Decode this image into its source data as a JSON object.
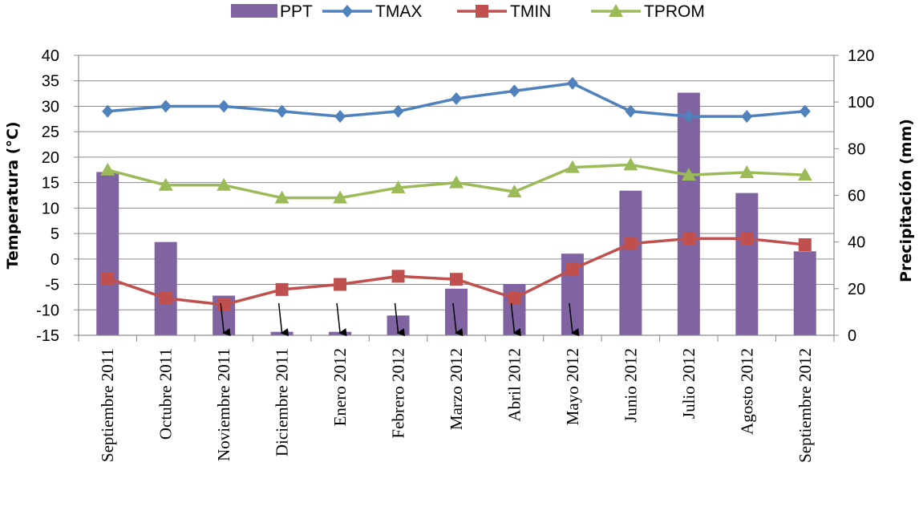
{
  "chart_data": {
    "type": "bar+line",
    "categories": [
      "Septiembre 2011",
      "Octubre 2011",
      "Noviembre  2011",
      "Diciembre  2011",
      "Enero 2012",
      "Febrero 2012",
      "Marzo 2012",
      "Abril 2012",
      "Mayo 2012",
      "Junio 2012",
      "Julio 2012",
      "Agosto 2012",
      "Septiembre 2012"
    ],
    "ylabel_left": "Temperatura (°C)",
    "ylabel_right": "Precipitación (mm)",
    "ylim_left": [
      -15,
      40
    ],
    "ylim_right": [
      0,
      120
    ],
    "yticks_left": [
      "40",
      "35",
      "30",
      "25",
      "20",
      "15",
      "10",
      "5",
      "0",
      "-5",
      "-10",
      "-15"
    ],
    "yticks_right": [
      "120",
      "100",
      "80",
      "60",
      "40",
      "20",
      "0"
    ],
    "bars": {
      "name": "PPT",
      "axis": "right",
      "color": "#8064a2",
      "values": [
        70,
        40,
        17,
        1.5,
        1.5,
        8.5,
        20,
        22,
        35,
        62,
        104,
        61,
        36
      ]
    },
    "series": [
      {
        "name": "TMAX",
        "axis": "left",
        "color": "#4f81bd",
        "marker": "diamond",
        "values": [
          29,
          30,
          30,
          29,
          28,
          29,
          31.5,
          33,
          34.5,
          29,
          28,
          28,
          29
        ]
      },
      {
        "name": "TMIN",
        "axis": "left",
        "color": "#c0504d",
        "marker": "square",
        "values": [
          -3.8,
          -7.7,
          -9,
          -6,
          -5,
          -3.4,
          -4,
          -7.7,
          -2,
          3,
          4,
          4,
          2.8
        ]
      },
      {
        "name": "TPROM",
        "axis": "left",
        "color": "#9bbb59",
        "marker": "triangle",
        "values": [
          17.5,
          14.5,
          14.5,
          12,
          12,
          14,
          15,
          13.2,
          18,
          18.5,
          16.5,
          17,
          16.5
        ]
      }
    ],
    "annotations": {
      "type": "downward-arrows",
      "positions": [
        2.5,
        3.5,
        4.5,
        5.5,
        6.5,
        7.5,
        8.5
      ]
    },
    "legend_position": "top"
  }
}
